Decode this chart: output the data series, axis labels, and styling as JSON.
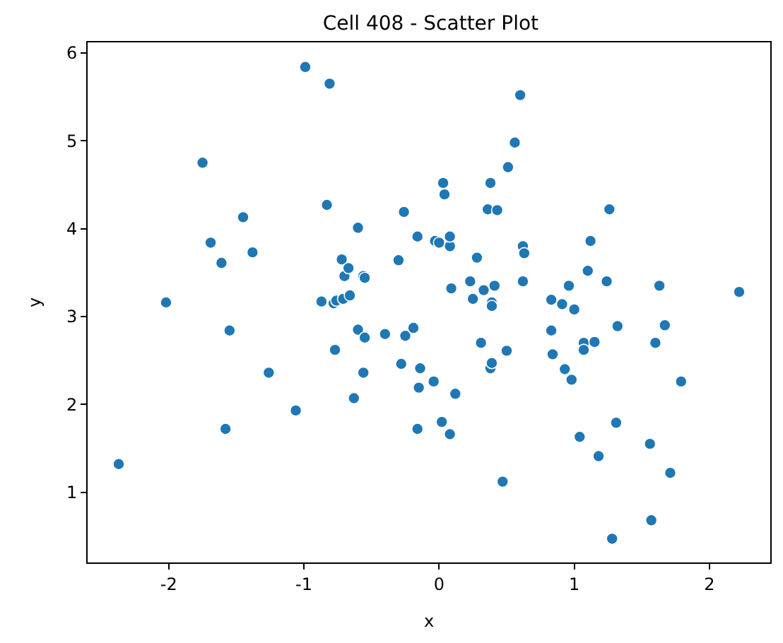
{
  "chart_data": {
    "type": "scatter",
    "title": "Cell 408 - Scatter Plot",
    "xlabel": "x",
    "ylabel": "y",
    "marker": "circle",
    "xlim": [
      -2.6,
      2.45
    ],
    "ylim": [
      0.2,
      6.12
    ],
    "xticks": [
      -2,
      -1,
      0,
      1,
      2
    ],
    "yticks": [
      1,
      2,
      3,
      4,
      5,
      6
    ],
    "series": [
      {
        "color": "#1f77b4",
        "x": [
          -2.37,
          -2.02,
          -1.75,
          -1.69,
          -1.61,
          -1.58,
          -1.55,
          -1.45,
          -1.38,
          -1.26,
          -1.06,
          -0.99,
          -0.87,
          -0.83,
          -0.81,
          -0.78,
          -0.76,
          -0.77,
          -0.72,
          -0.7,
          -0.71,
          -0.67,
          -0.66,
          -0.63,
          -0.6,
          -0.6,
          -0.56,
          -0.55,
          -0.56,
          -0.55,
          -0.4,
          -0.3,
          -0.28,
          -0.26,
          -0.25,
          -0.19,
          -0.16,
          -0.16,
          -0.15,
          -0.14,
          -0.04,
          -0.03,
          0.0,
          0.02,
          0.03,
          0.04,
          0.08,
          0.08,
          0.08,
          0.09,
          0.12,
          0.23,
          0.25,
          0.28,
          0.31,
          0.33,
          0.36,
          0.38,
          0.39,
          0.39,
          0.38,
          0.39,
          0.41,
          0.43,
          0.47,
          0.5,
          0.51,
          0.56,
          0.6,
          0.62,
          0.63,
          0.62,
          0.83,
          0.83,
          0.84,
          0.91,
          0.93,
          0.96,
          0.98,
          1.0,
          1.04,
          1.07,
          1.07,
          1.1,
          1.12,
          1.15,
          1.18,
          1.24,
          1.26,
          1.28,
          1.31,
          1.32,
          1.56,
          1.57,
          1.6,
          1.63,
          1.67,
          1.71,
          1.79,
          2.22
        ],
        "values": [
          1.32,
          3.16,
          4.75,
          3.84,
          3.61,
          1.72,
          2.84,
          4.13,
          3.73,
          2.36,
          1.93,
          5.84,
          3.17,
          4.27,
          5.65,
          3.15,
          3.18,
          2.62,
          3.65,
          3.46,
          3.2,
          3.55,
          3.24,
          2.07,
          4.01,
          2.85,
          3.46,
          3.44,
          2.36,
          2.76,
          2.8,
          3.64,
          2.46,
          4.19,
          2.78,
          2.87,
          3.91,
          1.72,
          2.19,
          2.41,
          2.26,
          3.86,
          3.84,
          1.8,
          4.52,
          4.39,
          3.8,
          3.91,
          1.66,
          3.32,
          2.12,
          3.4,
          3.2,
          3.67,
          2.7,
          3.3,
          4.22,
          4.52,
          3.16,
          3.12,
          2.41,
          2.47,
          3.35,
          4.21,
          1.12,
          2.61,
          4.7,
          4.98,
          5.52,
          3.8,
          3.72,
          3.4,
          3.19,
          2.84,
          2.57,
          3.14,
          2.4,
          3.35,
          2.28,
          3.08,
          1.63,
          2.7,
          2.62,
          3.52,
          3.86,
          2.71,
          1.41,
          3.4,
          4.22,
          0.47,
          1.79,
          2.89,
          1.55,
          0.68,
          2.7,
          3.35,
          2.9,
          1.22,
          2.26,
          3.28
        ]
      }
    ]
  }
}
